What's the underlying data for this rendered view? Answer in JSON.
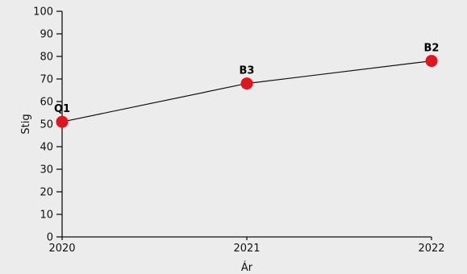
{
  "chart_data": {
    "type": "line",
    "x": [
      "2020",
      "2021",
      "2022"
    ],
    "y": [
      51,
      68,
      78
    ],
    "point_labels": [
      "Q1",
      "B3",
      "B2"
    ],
    "xlabel": "Ár",
    "ylabel": "Stig",
    "ylim": [
      0,
      100
    ],
    "yticks": [
      0,
      10,
      20,
      30,
      40,
      50,
      60,
      70,
      80,
      90,
      100
    ],
    "grid": false,
    "colors": {
      "line": "#111111",
      "marker": "#e0161e",
      "axis": "#111111",
      "background": "#ececec"
    }
  }
}
